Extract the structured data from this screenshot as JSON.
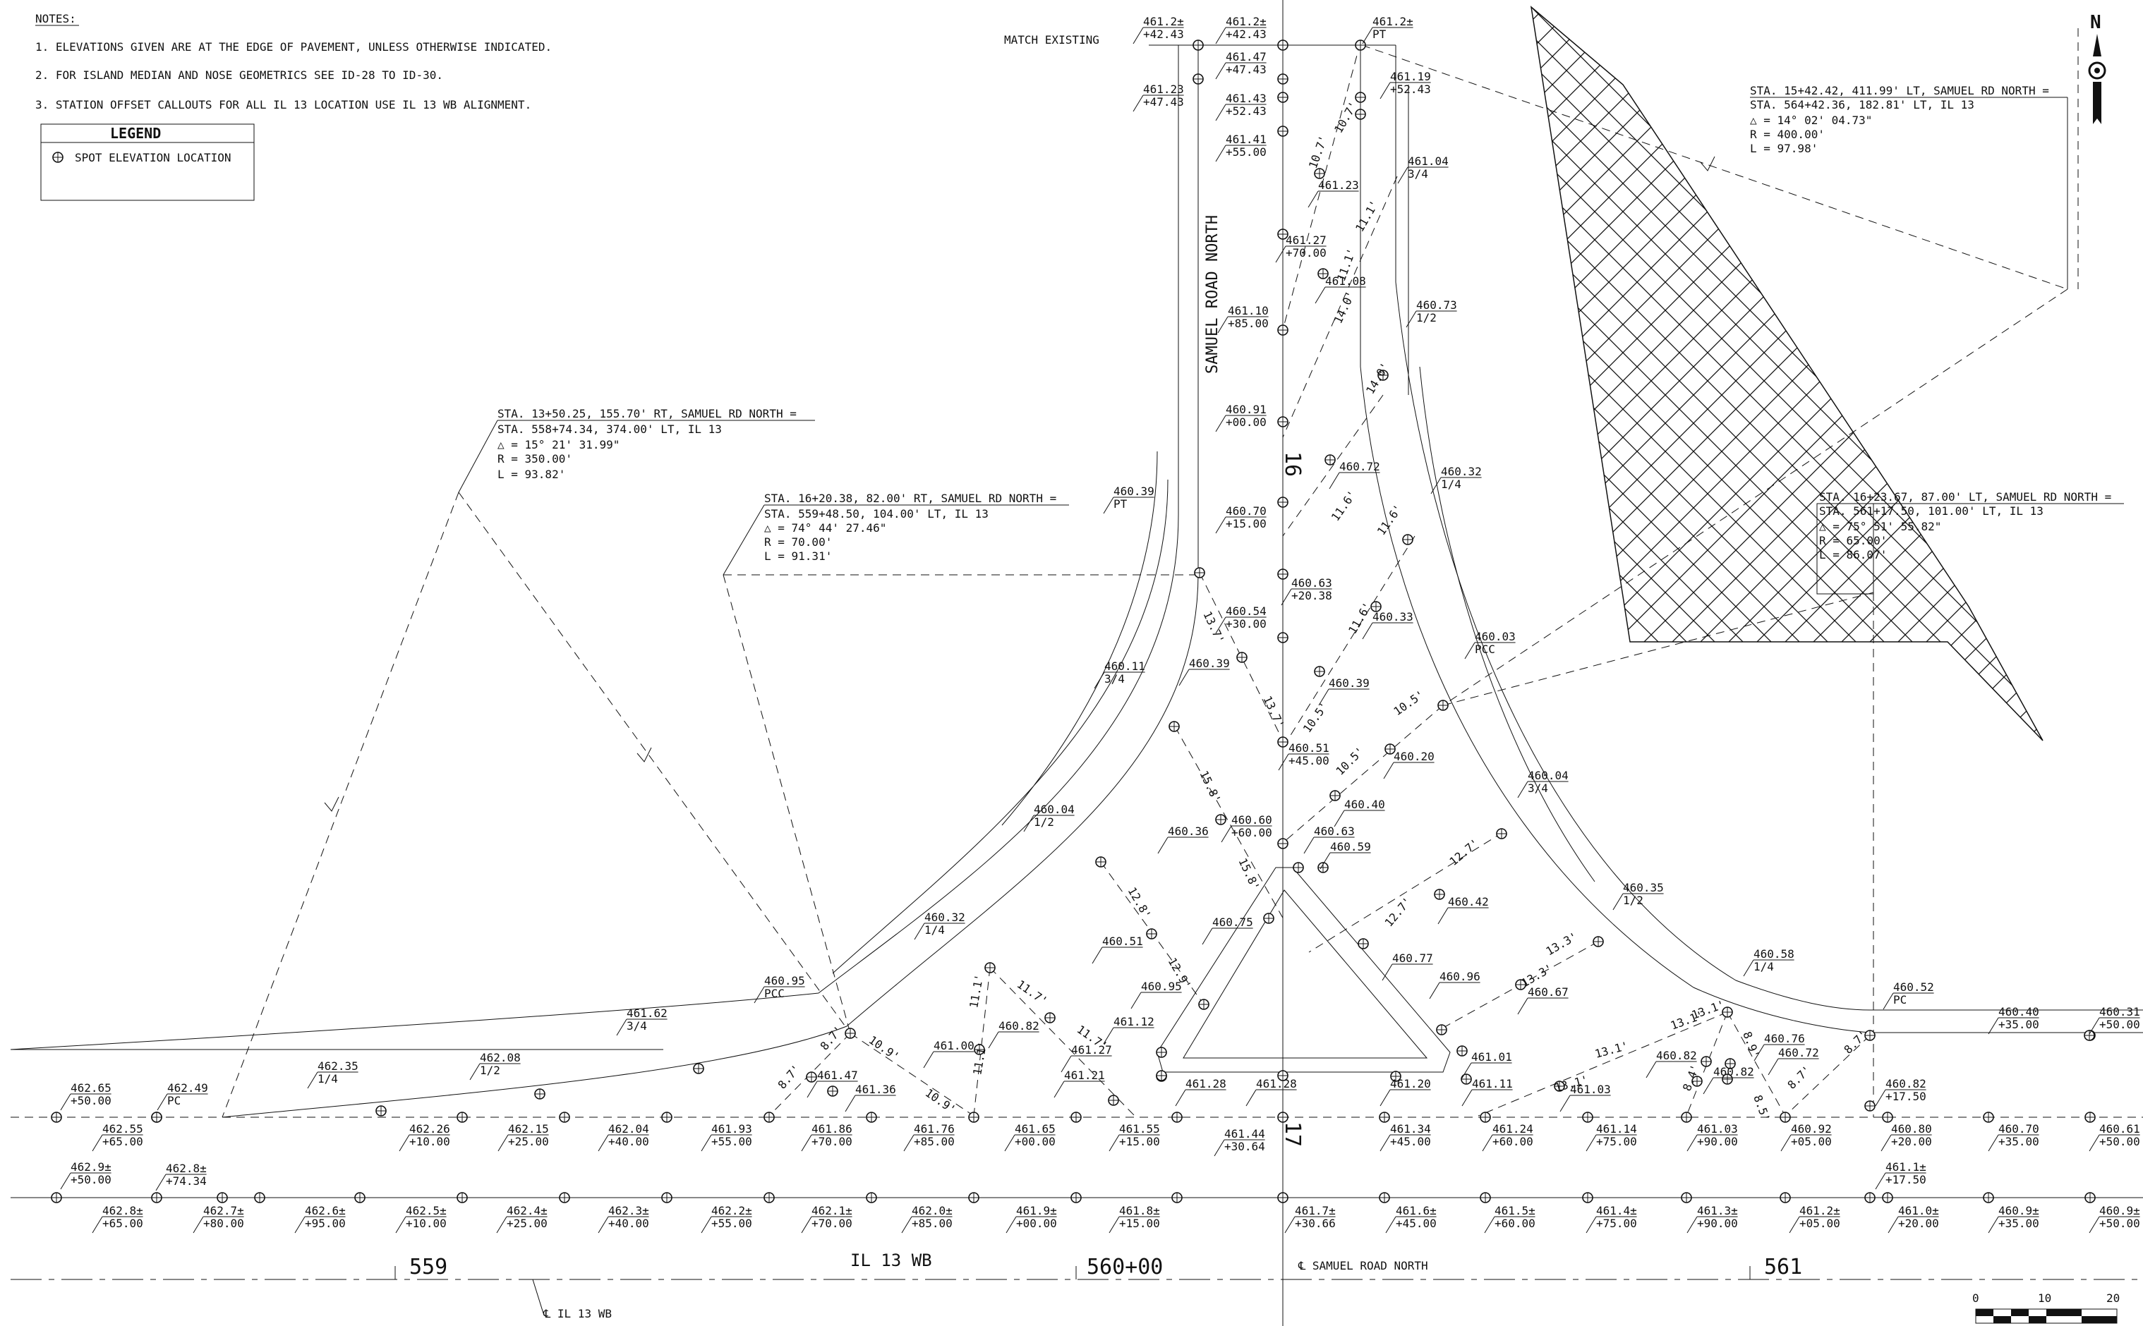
{
  "notes": {
    "heading": "NOTES:",
    "items": [
      "1.  ELEVATIONS GIVEN ARE AT THE EDGE OF PAVEMENT, UNLESS OTHERWISE INDICATED.",
      "2.  FOR ISLAND MEDIAN AND NOSE GEOMETRICS SEE ID-28 TO ID-30.",
      "3.  STATION OFFSET CALLOUTS FOR ALL IL 13 LOCATION USE IL 13 WB ALIGNMENT."
    ]
  },
  "legend": {
    "title": "LEGEND",
    "item": "SPOT ELEVATION LOCATION"
  },
  "north_label": "N",
  "road_labels": {
    "samuel": "SAMUEL  ROAD  NORTH",
    "il13": "IL 13 WB",
    "cl_il13": "℄ IL 13 WB",
    "cl_samuel": "℄ SAMUEL ROAD NORTH",
    "match": "MATCH EXISTING"
  },
  "stations": {
    "s559": "559",
    "s560": "560+00",
    "s561": "561",
    "s16": "16",
    "s17": "17"
  },
  "curve_data": [
    [
      "STA. 13+50.25, 155.70' RT, SAMUEL RD NORTH =",
      "STA. 558+74.34, 374.00' LT, IL 13",
      "△ = 15° 21' 31.99\"",
      "R = 350.00'",
      "L = 93.82'"
    ],
    [
      "STA. 16+20.38, 82.00' RT, SAMUEL RD NORTH =",
      "STA. 559+48.50, 104.00' LT, IL 13",
      "△ = 74° 44' 27.46\"",
      "R = 70.00'",
      "L = 91.31'"
    ],
    [
      "STA. 15+42.42, 411.99' LT, SAMUEL RD NORTH =",
      "STA. 564+42.36, 182.81' LT, IL 13",
      "△ = 14° 02' 04.73\"",
      "R = 400.00'",
      "L = 97.98'"
    ],
    [
      "STA. 16+23.67, 87.00' LT, SAMUEL RD NORTH =",
      "STA. 561+17.50, 101.00' LT, IL 13",
      "△ = 75° 51' 55.82\"",
      "R = 65.00'",
      "L = 86.07'"
    ]
  ],
  "spot_labels": [
    [
      "461.2±",
      "+42.43"
    ],
    [
      "461.2±",
      "+42.43"
    ],
    [
      "461.2±",
      "PT"
    ],
    [
      "461.47",
      "+47.43"
    ],
    [
      "461.23",
      "+47.43"
    ],
    [
      "461.43",
      "+52.43"
    ],
    [
      "461.19",
      "+52.43"
    ],
    [
      "461.41",
      "+55.00"
    ],
    [
      "461.23",
      ""
    ],
    [
      "461.04",
      "3/4"
    ],
    [
      "461.27",
      "+70.00"
    ],
    [
      "461.08",
      ""
    ],
    [
      "461.10",
      "+85.00"
    ],
    [
      "460.73",
      "1/2"
    ],
    [
      "460.91",
      "+00.00"
    ],
    [
      "460.72",
      ""
    ],
    [
      "460.39",
      "PT"
    ],
    [
      "460.70",
      "+15.00"
    ],
    [
      "460.32",
      "1/4"
    ],
    [
      "460.63",
      "+20.38"
    ],
    [
      "460.54",
      "+30.00"
    ],
    [
      "460.33",
      ""
    ],
    [
      "460.39",
      ""
    ],
    [
      "460.11",
      "3/4"
    ],
    [
      "460.39",
      ""
    ],
    [
      "460.03",
      "PCC"
    ],
    [
      "460.51",
      "+45.00"
    ],
    [
      "460.20",
      ""
    ],
    [
      "460.04",
      "1/2"
    ],
    [
      "460.40",
      ""
    ],
    [
      "460.04",
      "3/4"
    ],
    [
      "460.60",
      "+60.00"
    ],
    [
      "460.36",
      ""
    ],
    [
      "460.63",
      ""
    ],
    [
      "460.59",
      ""
    ],
    [
      "460.42",
      ""
    ],
    [
      "460.51",
      ""
    ],
    [
      "460.75",
      ""
    ],
    [
      "460.35",
      "1/2"
    ],
    [
      "460.32",
      "1/4"
    ],
    [
      "460.77",
      ""
    ],
    [
      "460.95",
      ""
    ],
    [
      "460.96",
      ""
    ],
    [
      "460.67",
      ""
    ],
    [
      "460.58",
      "1/4"
    ],
    [
      "460.95",
      "PCC"
    ],
    [
      "460.52",
      "PC"
    ],
    [
      "460.82",
      ""
    ],
    [
      "461.12",
      ""
    ],
    [
      "460.40",
      "+35.00"
    ],
    [
      "460.31",
      "+50.00"
    ],
    [
      "461.62",
      "3/4"
    ],
    [
      "461.00",
      ""
    ],
    [
      "461.27",
      ""
    ],
    [
      "461.01",
      ""
    ],
    [
      "460.76",
      ""
    ],
    [
      "460.72",
      ""
    ],
    [
      "460.82",
      ""
    ],
    [
      "460.82",
      ""
    ],
    [
      "462.35",
      "1/4"
    ],
    [
      "462.08",
      "1/2"
    ],
    [
      "461.47",
      ""
    ],
    [
      "461.36",
      ""
    ],
    [
      "461.21",
      ""
    ],
    [
      "461.28",
      ""
    ],
    [
      "461.28",
      ""
    ],
    [
      "461.20",
      ""
    ],
    [
      "461.11",
      ""
    ],
    [
      "461.03",
      ""
    ],
    [
      "462.65",
      "+50.00"
    ],
    [
      "462.49",
      "PC"
    ],
    [
      "460.82",
      "+17.50"
    ],
    [
      "462.55",
      "+65.00"
    ],
    [
      "462.26",
      "+10.00"
    ],
    [
      "462.15",
      "+25.00"
    ],
    [
      "462.04",
      "+40.00"
    ],
    [
      "461.93",
      "+55.00"
    ],
    [
      "461.86",
      "+70.00"
    ],
    [
      "461.76",
      "+85.00"
    ],
    [
      "461.65",
      "+00.00"
    ],
    [
      "461.55",
      "+15.00"
    ],
    [
      "461.44",
      "+30.64"
    ],
    [
      "461.34",
      "+45.00"
    ],
    [
      "461.24",
      "+60.00"
    ],
    [
      "461.14",
      "+75.00"
    ],
    [
      "461.03",
      "+90.00"
    ],
    [
      "460.92",
      "+05.00"
    ],
    [
      "460.80",
      "+20.00"
    ],
    [
      "460.70",
      "+35.00"
    ],
    [
      "460.61",
      "+50.00"
    ],
    [
      "462.9±",
      "+50.00"
    ],
    [
      "462.8±",
      "+74.34"
    ],
    [
      "461.1±",
      "+17.50"
    ],
    [
      "462.8±",
      "+65.00"
    ],
    [
      "462.7±",
      "+80.00"
    ],
    [
      "462.6±",
      "+95.00"
    ],
    [
      "462.5±",
      "+10.00"
    ],
    [
      "462.4±",
      "+25.00"
    ],
    [
      "462.3±",
      "+40.00"
    ],
    [
      "462.2±",
      "+55.00"
    ],
    [
      "462.1±",
      "+70.00"
    ],
    [
      "462.0±",
      "+85.00"
    ],
    [
      "461.9±",
      "+00.00"
    ],
    [
      "461.8±",
      "+15.00"
    ],
    [
      "461.7±",
      "+30.66"
    ],
    [
      "461.6±",
      "+45.00"
    ],
    [
      "461.5±",
      "+60.00"
    ],
    [
      "461.4±",
      "+75.00"
    ],
    [
      "461.3±",
      "+90.00"
    ],
    [
      "461.2±",
      "+05.00"
    ],
    [
      "461.0±",
      "+20.00"
    ],
    [
      "460.9±",
      "+35.00"
    ],
    [
      "460.9±",
      "+50.00"
    ]
  ],
  "dims": [
    "10.7'",
    "10.7'",
    "11.1'",
    "11.1'",
    "14.0'",
    "14.0'",
    "11.6'",
    "11.6'",
    "11.6'",
    "13.7'",
    "13.7'",
    "10.5'",
    "10.5'",
    "10.5'",
    "15.8'",
    "15.8'",
    "12.8'",
    "12.9'",
    "12.7'",
    "12.7'",
    "13.3'",
    "13.3'",
    "11.7'",
    "11.7'",
    "11.1'",
    "11.1'",
    "8.7'",
    "10.9'",
    "10.9'",
    "8.7'",
    "13.1'",
    "13.1'",
    "13.1'",
    "13.1'",
    "8.9'",
    "8.4'",
    "8.5'",
    "8.7'",
    "8.7'"
  ],
  "scale": {
    "ticks": [
      "0",
      "10",
      "20"
    ]
  }
}
